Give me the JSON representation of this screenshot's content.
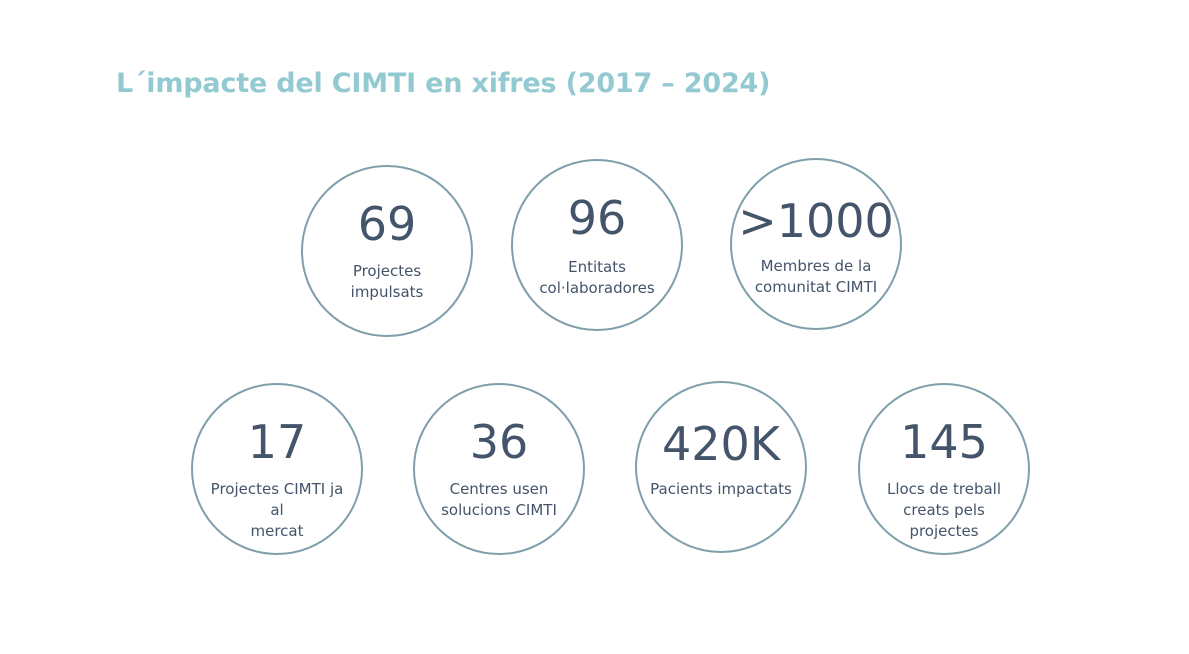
{
  "title": "L´impacte del CIMTI en xifres (2017 – 2024)",
  "colors": {
    "title": "#93cad2",
    "circle_border": "#7f9fab",
    "text": "#44546a"
  },
  "stats": [
    {
      "value": "69",
      "label": "Projectes\nimpulsats"
    },
    {
      "value": "96",
      "label": "Entitats\ncol·laboradores"
    },
    {
      "value": ">1000",
      "label": "Membres de la\ncomunitat CIMTI"
    },
    {
      "value": "17",
      "label": "Projectes CIMTI ja al\nmercat"
    },
    {
      "value": "36",
      "label": "Centres usen\nsolucions CIMTI"
    },
    {
      "value": "420K",
      "label": "Pacients impactats"
    },
    {
      "value": "145",
      "label": "Llocs de treball\ncreats pels\nprojectes"
    }
  ]
}
